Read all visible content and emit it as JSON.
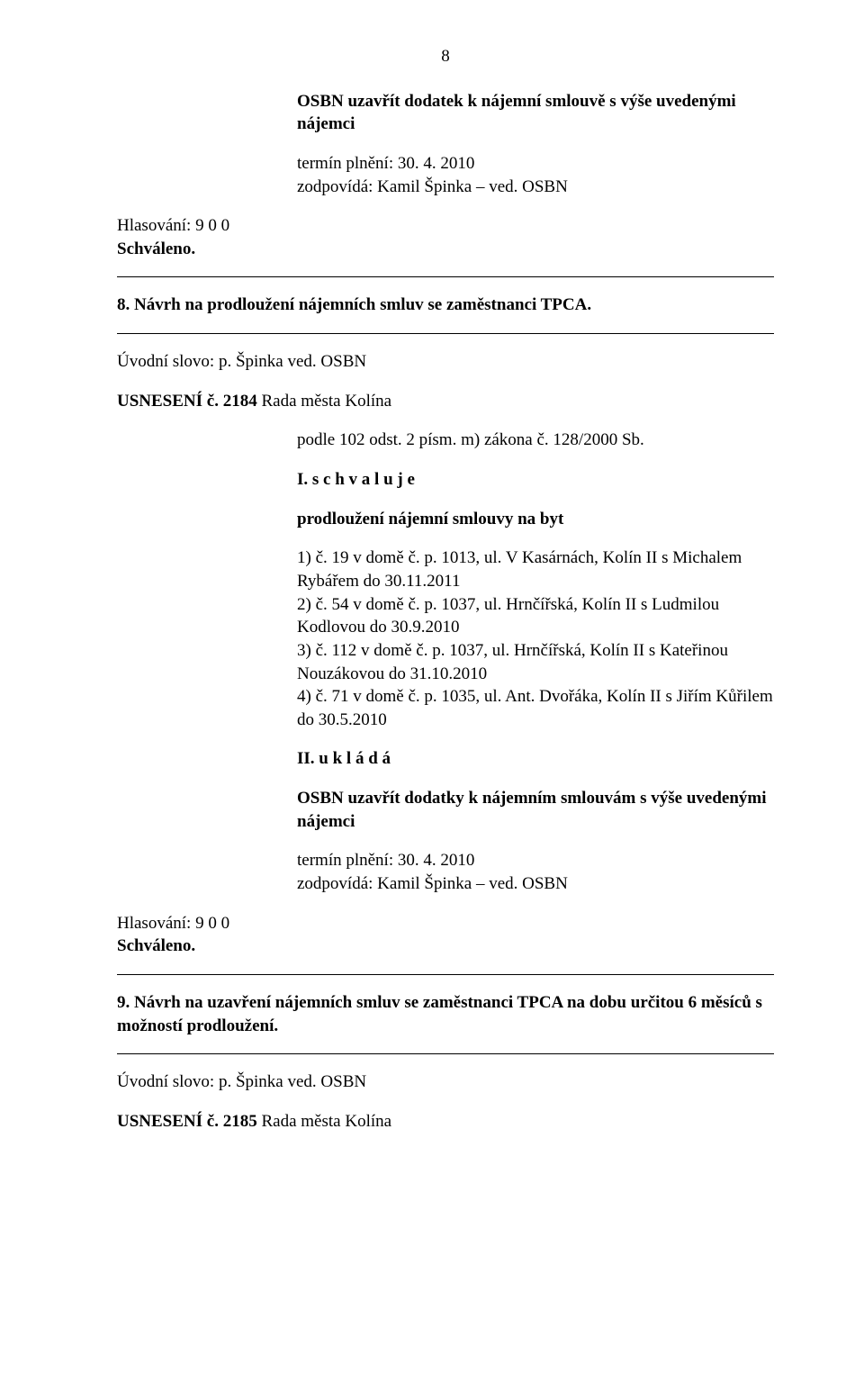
{
  "page_number": "8",
  "intro_block": "OSBN uzavřít dodatek k nájemní smlouvě s výše uvedenými nájemci",
  "termin1_line1": "termín plnění: 30. 4. 2010",
  "termin1_line2": "zodpovídá: Kamil Špinka – ved. OSBN",
  "hlasovani1": "Hlasování: 9 0 0",
  "schvaleno1": "Schváleno.",
  "sec8_title": "8. Návrh na prodloužení nájemních smluv se zaměstnanci TPCA.",
  "uvod1": "Úvodní slovo: p. Špinka ved. OSBN",
  "usneseni_2184_label": "USNESENÍ č. 2184",
  "usneseni_2184_rest": " Rada města Kolína",
  "podle": "podle 102 odst. 2 písm. m) zákona č. 128/2000 Sb.",
  "i_schvaluje": "I.  s c h v a l u j e",
  "prodlouzeni": "prodloužení nájemní smlouvy na byt",
  "item1": "1) č. 19 v domě č. p. 1013, ul. V Kasárnách, Kolín II s Michalem Rybářem do 30.11.2011",
  "item2": "2) č. 54 v domě č. p. 1037, ul. Hrnčířská, Kolín II s Ludmilou Kodlovou do 30.9.2010",
  "item3": "3) č. 112 v domě č. p. 1037, ul. Hrnčířská, Kolín II s Kateřinou Nouzákovou do 31.10.2010",
  "item4": "4) č. 71 v domě č. p. 1035, ul. Ant. Dvořáka, Kolín II s Jiřím Kůřilem do 30.5.2010",
  "ii_uklada": "II.  u k l á d á",
  "osbn_uzavrit": "OSBN uzavřít dodatky k nájemním smlouvám s výše uvedenými nájemci",
  "termin2_line1": "termín plnění: 30. 4. 2010",
  "termin2_line2": "zodpovídá: Kamil Špinka – ved. OSBN",
  "hlasovani2": "Hlasování:  9  0  0",
  "schvaleno2": "Schváleno.",
  "sec9_title": "9. Návrh na uzavření nájemních smluv se zaměstnanci TPCA na dobu určitou 6 měsíců s možností prodloužení.",
  "uvod2": "Úvodní slovo: p. Špinka ved. OSBN",
  "usneseni_2185_label": "USNESENÍ č. 2185",
  "usneseni_2185_rest": " Rada města Kolína"
}
